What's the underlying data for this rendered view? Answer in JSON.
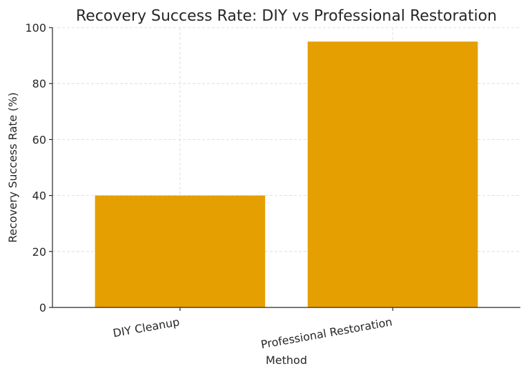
{
  "chart_data": {
    "type": "bar",
    "title": "Recovery Success Rate: DIY vs Professional Restoration",
    "xlabel": "Method",
    "ylabel": "Recovery Success Rate (%)",
    "categories": [
      "DIY Cleanup",
      "Professional Restoration"
    ],
    "values": [
      40,
      95
    ],
    "ylim": [
      0,
      100
    ],
    "yticks": [
      0,
      20,
      40,
      60,
      80,
      100
    ],
    "grid": true,
    "bar_color": "#E69F00",
    "category_label_rotation_deg": -10
  }
}
